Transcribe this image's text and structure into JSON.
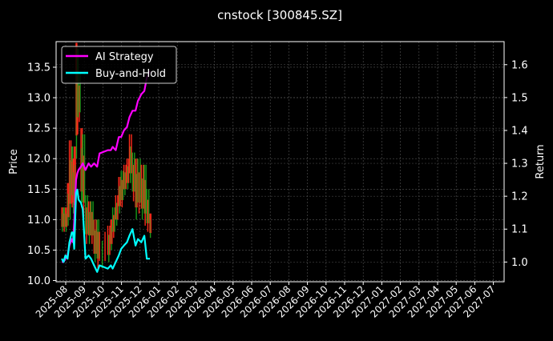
{
  "figure": {
    "title": "cnstock [300845.SZ]",
    "background": "#000000"
  },
  "chart_data": {
    "type": "line",
    "title": "cnstock [300845.SZ]",
    "xlabel": "",
    "ylabel": "Price",
    "ylabel_right": "Return",
    "ylim": [
      9.98,
      13.92
    ],
    "ylim_right": [
      0.94,
      1.67
    ],
    "grid": true,
    "legend_position": "upper left",
    "x_ticks": [
      "2025-08",
      "2025-09",
      "2025-10",
      "2025-11",
      "2025-12",
      "2026-01",
      "2026-02",
      "2026-03",
      "2026-04",
      "2026-05",
      "2026-06",
      "2026-07",
      "2026-08",
      "2026-09",
      "2026-10",
      "2026-11",
      "2026-12",
      "2027-01",
      "2027-02",
      "2027-03",
      "2027-04",
      "2027-05",
      "2027-06",
      "2027-07"
    ],
    "y_ticks_left": [
      "10.0",
      "10.5",
      "11.0",
      "11.5",
      "12.0",
      "12.5",
      "13.0",
      "13.5"
    ],
    "y_ticks_right": [
      "1.0",
      "1.1",
      "1.2",
      "1.3",
      "1.4",
      "1.5",
      "1.6"
    ],
    "colors": {
      "ai_strategy": "#ff00ff",
      "buy_and_hold": "#00ffff",
      "candle_up": "#ff2a1a",
      "candle_down": "#1a9a1a",
      "axis": "#ffffff",
      "grid": "#555555"
    },
    "series": [
      {
        "name": "AI Strategy",
        "axis": "right",
        "x": [
          "2025-07-25",
          "2025-07-28",
          "2025-07-31",
          "2025-08-04",
          "2025-08-07",
          "2025-08-11",
          "2025-08-13",
          "2025-08-15",
          "2025-08-18",
          "2025-08-20",
          "2025-08-22",
          "2025-08-26",
          "2025-08-29",
          "2025-09-03",
          "2025-09-08",
          "2025-09-12",
          "2025-09-17",
          "2025-09-22",
          "2025-09-26",
          "2025-10-09",
          "2025-10-14",
          "2025-10-17",
          "2025-10-22",
          "2025-10-27",
          "2025-10-31",
          "2025-11-05",
          "2025-11-10",
          "2025-11-14",
          "2025-11-19",
          "2025-11-24",
          "2025-11-28",
          "2025-12-03",
          "2025-12-08",
          "2025-12-12",
          "2025-12-17"
        ],
        "values": [
          1.0,
          1.0,
          1.01,
          1.02,
          1.05,
          1.07,
          1.06,
          1.12,
          1.25,
          1.27,
          1.28,
          1.29,
          1.3,
          1.28,
          1.3,
          1.29,
          1.3,
          1.29,
          1.33,
          1.34,
          1.34,
          1.35,
          1.34,
          1.38,
          1.38,
          1.4,
          1.41,
          1.44,
          1.46,
          1.46,
          1.49,
          1.51,
          1.52,
          1.56,
          1.58
        ]
      },
      {
        "name": "Buy-and-Hold",
        "axis": "right",
        "x": [
          "2025-07-25",
          "2025-07-28",
          "2025-07-31",
          "2025-08-04",
          "2025-08-07",
          "2025-08-11",
          "2025-08-13",
          "2025-08-15",
          "2025-08-18",
          "2025-08-20",
          "2025-08-22",
          "2025-08-26",
          "2025-08-29",
          "2025-09-03",
          "2025-09-08",
          "2025-09-12",
          "2025-09-17",
          "2025-09-22",
          "2025-09-26",
          "2025-10-09",
          "2025-10-14",
          "2025-10-17",
          "2025-10-22",
          "2025-10-27",
          "2025-10-31",
          "2025-11-05",
          "2025-11-10",
          "2025-11-14",
          "2025-11-19",
          "2025-11-24",
          "2025-11-28",
          "2025-12-03",
          "2025-12-08",
          "2025-12-12",
          "2025-12-17"
        ],
        "values": [
          1.01,
          1.0,
          1.02,
          1.01,
          1.06,
          1.09,
          1.09,
          1.04,
          1.21,
          1.22,
          1.19,
          1.18,
          1.16,
          1.01,
          1.02,
          1.01,
          0.99,
          0.97,
          0.99,
          0.98,
          0.99,
          0.98,
          1.0,
          1.02,
          1.04,
          1.05,
          1.06,
          1.08,
          1.1,
          1.05,
          1.07,
          1.06,
          1.08,
          1.01,
          1.01
        ]
      }
    ],
    "candles": {
      "axis": "left",
      "note": "thin OHLC bars from ~2025-07-25 to ~2025-12-18; values estimated",
      "x": [
        "2025-07-25",
        "2025-07-28",
        "2025-07-31",
        "2025-08-04",
        "2025-08-07",
        "2025-08-11",
        "2025-08-13",
        "2025-08-15",
        "2025-08-18",
        "2025-08-20",
        "2025-08-22",
        "2025-08-26",
        "2025-08-29",
        "2025-09-03",
        "2025-09-08",
        "2025-09-12",
        "2025-09-17",
        "2025-09-22",
        "2025-09-26",
        "2025-10-09",
        "2025-10-14",
        "2025-10-17",
        "2025-10-22",
        "2025-10-27",
        "2025-10-31",
        "2025-11-05",
        "2025-11-10",
        "2025-11-14",
        "2025-11-19",
        "2025-11-24",
        "2025-11-28",
        "2025-12-03",
        "2025-12-08",
        "2025-12-12",
        "2025-12-17"
      ],
      "high": [
        11.2,
        11.2,
        11.2,
        11.6,
        12.3,
        12.2,
        12.0,
        12.2,
        13.9,
        13.8,
        13.4,
        12.5,
        12.4,
        11.4,
        11.3,
        11.3,
        11.0,
        11.0,
        10.8,
        10.9,
        11.0,
        11.2,
        11.4,
        11.7,
        11.8,
        11.9,
        12.0,
        12.4,
        12.1,
        12.0,
        12.0,
        11.9,
        11.9,
        11.5,
        11.1
      ],
      "low": [
        10.8,
        10.8,
        10.8,
        10.9,
        11.0,
        11.2,
        11.1,
        11.0,
        12.0,
        12.4,
        12.6,
        11.2,
        11.0,
        10.6,
        10.6,
        10.6,
        10.3,
        10.2,
        10.2,
        10.3,
        10.5,
        10.7,
        10.9,
        11.1,
        11.2,
        11.4,
        11.5,
        11.6,
        11.3,
        11.0,
        11.1,
        11.0,
        10.9,
        10.8,
        10.7
      ],
      "up": [
        true,
        false,
        true,
        true,
        true,
        false,
        true,
        true,
        true,
        false,
        false,
        true,
        false,
        false,
        true,
        false,
        true,
        false,
        true,
        true,
        true,
        false,
        true,
        true,
        false,
        true,
        true,
        true,
        false,
        true,
        false,
        true,
        false,
        false,
        true
      ]
    }
  }
}
